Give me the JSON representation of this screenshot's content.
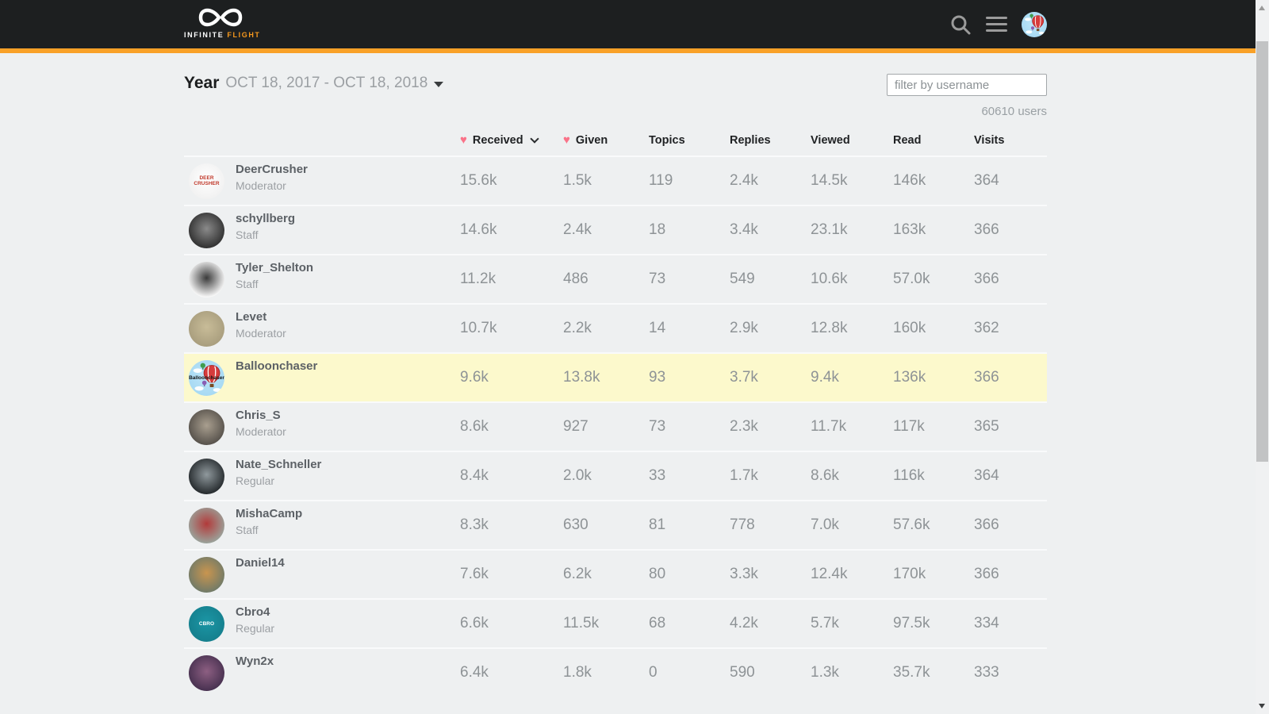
{
  "brand": {
    "name_primary": "INFINITE",
    "name_accent": "FLIGHT"
  },
  "colors": {
    "accent_orange": "#f9a128",
    "heart_pink": "#fa7389",
    "highlight_yellow": "#fcf9cc",
    "header_bg": "#1d1f20"
  },
  "toolbar": {
    "period_label": "Year",
    "period_range": "OCT 18, 2017 - OCT 18, 2018",
    "filter_placeholder": "filter by username",
    "user_count": "60610 users"
  },
  "header_avatar": {
    "bg": "#a6d9f3",
    "bg2": "#bfe6f8",
    "balloon": true,
    "label": ""
  },
  "table": {
    "columns": [
      {
        "label": "Received",
        "heart": true,
        "sorted": true
      },
      {
        "label": "Given",
        "heart": true
      },
      {
        "label": "Topics"
      },
      {
        "label": "Replies"
      },
      {
        "label": "Viewed"
      },
      {
        "label": "Read"
      },
      {
        "label": "Visits"
      }
    ],
    "rows": [
      {
        "username": "DeerCrusher",
        "title": "Moderator",
        "stats": [
          "15.6k",
          "1.5k",
          "119",
          "2.4k",
          "14.5k",
          "146k",
          "364"
        ],
        "highlight": false,
        "avatar": {
          "bg": "#f1f1f1",
          "bg2": "#ffffff",
          "label": "DEER CRUSHER",
          "label_color": "#c0392b"
        }
      },
      {
        "username": "schyllberg",
        "title": "Staff",
        "stats": [
          "14.6k",
          "2.4k",
          "18",
          "3.4k",
          "23.1k",
          "163k",
          "366"
        ],
        "highlight": false,
        "avatar": {
          "bg": "#2f2f2f",
          "bg2": "#8a8a8a",
          "label": ""
        }
      },
      {
        "username": "Tyler_Shelton",
        "title": "Staff",
        "stats": [
          "11.2k",
          "486",
          "73",
          "549",
          "10.6k",
          "57.0k",
          "366"
        ],
        "highlight": false,
        "avatar": {
          "bg": "#ffffff",
          "bg2": "#3a3a3a",
          "label": ""
        }
      },
      {
        "username": "Levet",
        "title": "Moderator",
        "stats": [
          "10.7k",
          "2.2k",
          "14",
          "2.9k",
          "12.8k",
          "160k",
          "362"
        ],
        "highlight": false,
        "avatar": {
          "bg": "#a89d7d",
          "bg2": "#c8bc98",
          "label": ""
        }
      },
      {
        "username": "Balloonchaser",
        "title": "",
        "stats": [
          "9.6k",
          "13.8k",
          "93",
          "3.7k",
          "9.4k",
          "136k",
          "366"
        ],
        "highlight": true,
        "avatar": {
          "bg": "#a6d9f3",
          "bg2": "#bfe6f8",
          "balloon": true,
          "label": "Balloonchaser",
          "label_color": "#111111"
        }
      },
      {
        "username": "Chris_S",
        "title": "Moderator",
        "stats": [
          "8.6k",
          "927",
          "73",
          "2.3k",
          "11.7k",
          "117k",
          "365"
        ],
        "highlight": false,
        "avatar": {
          "bg": "#55504a",
          "bg2": "#a99f8f",
          "label": ""
        }
      },
      {
        "username": "Nate_Schneller",
        "title": "Regular",
        "stats": [
          "8.4k",
          "2.0k",
          "33",
          "1.7k",
          "8.6k",
          "116k",
          "364"
        ],
        "highlight": false,
        "avatar": {
          "bg": "#23282b",
          "bg2": "#90999d",
          "label": ""
        }
      },
      {
        "username": "MishaCamp",
        "title": "Staff",
        "stats": [
          "8.3k",
          "630",
          "81",
          "778",
          "7.0k",
          "57.6k",
          "366"
        ],
        "highlight": false,
        "avatar": {
          "bg": "#9aa59d",
          "bg2": "#b23a3a",
          "label": ""
        }
      },
      {
        "username": "Daniel14",
        "title": "",
        "stats": [
          "7.6k",
          "6.2k",
          "80",
          "3.3k",
          "12.4k",
          "170k",
          "366"
        ],
        "highlight": false,
        "avatar": {
          "bg": "#6f7a68",
          "bg2": "#c9954f",
          "label": ""
        }
      },
      {
        "username": "Cbro4",
        "title": "Regular",
        "stats": [
          "6.6k",
          "11.5k",
          "68",
          "4.2k",
          "5.7k",
          "97.5k",
          "334"
        ],
        "highlight": false,
        "avatar": {
          "bg": "#157f8d",
          "bg2": "#1b96a5",
          "label": "CBRO",
          "label_color": "#ffffff"
        }
      },
      {
        "username": "Wyn2x",
        "title": "",
        "stats": [
          "6.4k",
          "1.8k",
          "0",
          "590",
          "1.3k",
          "35.7k",
          "333"
        ],
        "highlight": false,
        "avatar": {
          "bg": "#46304f",
          "bg2": "#8d5f82",
          "label": ""
        }
      }
    ]
  }
}
